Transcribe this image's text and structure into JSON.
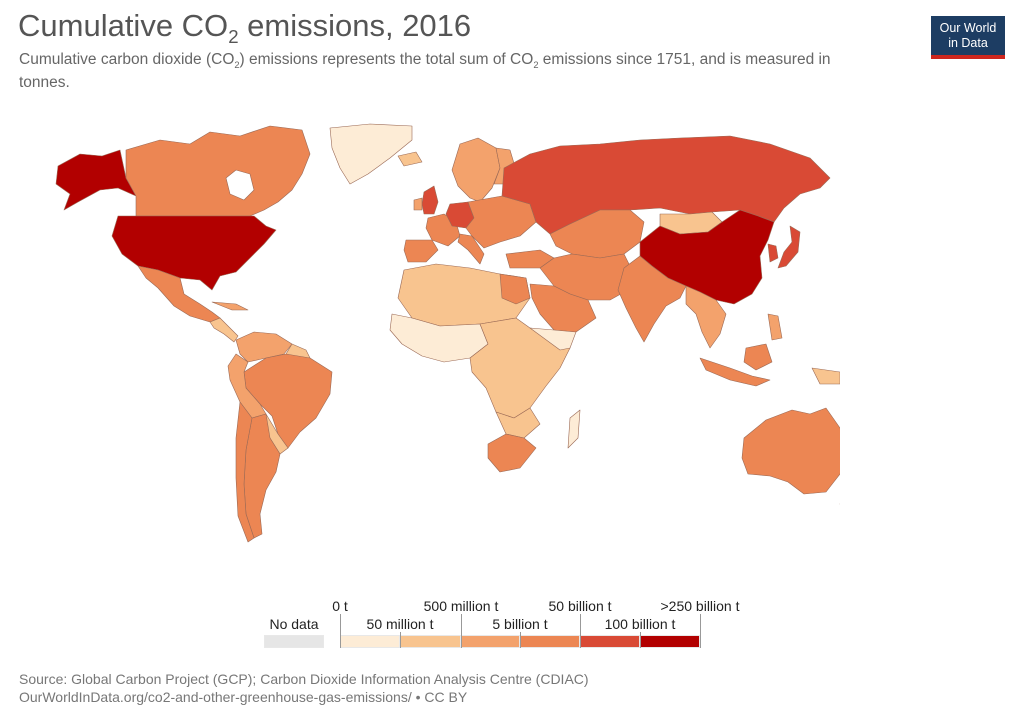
{
  "title_prefix": "Cumulative CO",
  "title_sub": "2",
  "title_suffix": " emissions, 2016",
  "subtitle_a": "Cumulative carbon dioxide (CO",
  "subtitle_sub1": "2",
  "subtitle_b": ") emissions represents the total sum of CO",
  "subtitle_sub2": "2",
  "subtitle_c": " emissions since 1751, and is measured in tonnes.",
  "logo_line1": "Our World",
  "logo_line2": "in Data",
  "legend": {
    "no_data_label": "No data",
    "no_data_color": "#e6e6e6",
    "top_labels": [
      "0 t",
      "500 million t",
      "50 billion t",
      ">250 billion t"
    ],
    "bottom_labels": [
      "50 million t",
      "5 billion t",
      "100 billion t"
    ],
    "colors": [
      "#fdecd6",
      "#f8c48f",
      "#f3a26c",
      "#ec8653",
      "#d94a35",
      "#b20000"
    ]
  },
  "map_colors": {
    "very_low": "#fdecd6",
    "low": "#f8c48f",
    "medium": "#f3a26c",
    "high": "#ec8653",
    "very_high": "#d94a35",
    "top": "#b20000",
    "border": "#9b6a56"
  },
  "source_line1": "Source: Global Carbon Project (GCP); Carbon Dioxide Information Analysis Centre (CDIAC)",
  "source_line2": "OurWorldInData.org/co2-and-other-greenhouse-gas-emissions/ • CC BY"
}
